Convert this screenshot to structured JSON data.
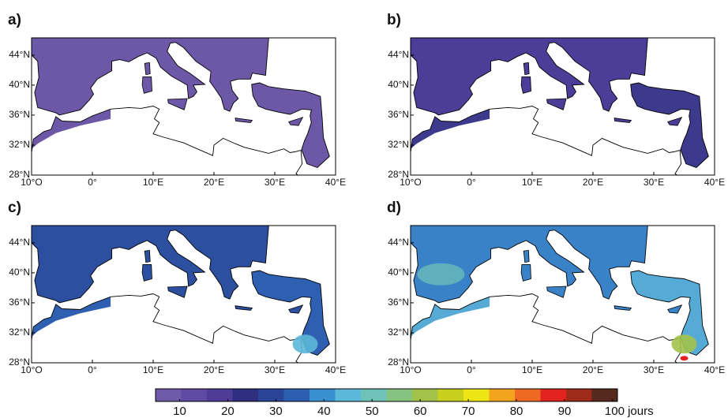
{
  "panels": [
    {
      "label": "a)"
    },
    {
      "label": "b)"
    },
    {
      "label": "c)"
    },
    {
      "label": "d)"
    }
  ],
  "lon_ticks": [
    "10°O",
    "0°",
    "10°E",
    "20°E",
    "30°E",
    "40°E"
  ],
  "lat_ticks": [
    "28°N",
    "32°N",
    "36°N",
    "40°N",
    "44°N"
  ],
  "colorbar": {
    "colors": [
      "#6e5aa8",
      "#5e4aa0",
      "#4f3c96",
      "#2e2f7e",
      "#2a4596",
      "#2c5fb0",
      "#3a8fd0",
      "#5cb8d8",
      "#6fc2b8",
      "#84c380",
      "#a3c24a",
      "#c8cf1c",
      "#eee515",
      "#f3a41e",
      "#ee6a22",
      "#e2231f",
      "#9e2a1a",
      "#55291d"
    ],
    "clim": [
      5,
      101
    ],
    "ticks": [
      10,
      20,
      30,
      40,
      50,
      60,
      70,
      80,
      90,
      {
        "value": 100,
        "label": "100 jours"
      }
    ]
  }
}
